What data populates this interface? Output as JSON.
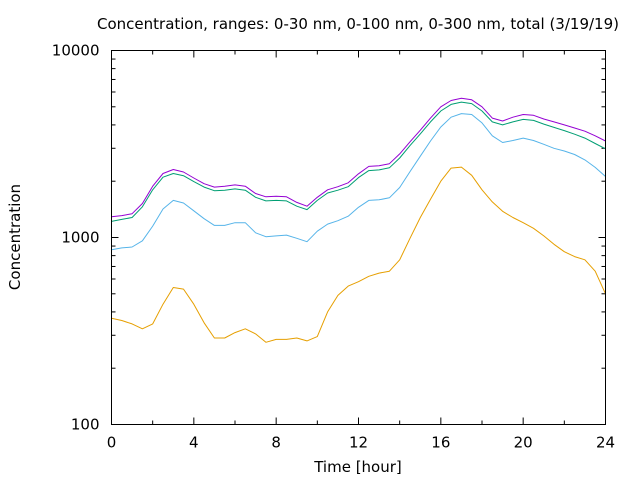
{
  "chart_data": {
    "type": "line",
    "title": "Concentration, ranges: 0-30 nm, 0-100 nm, 0-300 nm, total (3/19/19)",
    "xlabel": "Time [hour]",
    "ylabel": "Concentration",
    "xlim": [
      0,
      24
    ],
    "ylim": [
      100,
      10000
    ],
    "yscale": "log",
    "grid": false,
    "legend": "none",
    "xticks": [
      "0",
      "4",
      "8",
      "12",
      "16",
      "20",
      "24"
    ],
    "yticks": [
      "100",
      "1000",
      "10000"
    ],
    "x": [
      0,
      0.5,
      1,
      1.5,
      2,
      2.5,
      3,
      3.5,
      4,
      4.5,
      5,
      5.5,
      6,
      6.5,
      7,
      7.5,
      8,
      8.5,
      9,
      9.5,
      10,
      10.5,
      11,
      11.5,
      12,
      12.5,
      13,
      13.5,
      14,
      14.5,
      15,
      15.5,
      16,
      16.5,
      17,
      17.5,
      18,
      18.5,
      19,
      19.5,
      20,
      20.5,
      21,
      21.5,
      22,
      22.5,
      23,
      23.5,
      24
    ],
    "series": [
      {
        "color": "#9400d3",
        "values": [
          1290,
          1310,
          1340,
          1520,
          1880,
          2200,
          2310,
          2240,
          2080,
          1940,
          1860,
          1880,
          1910,
          1880,
          1720,
          1650,
          1660,
          1650,
          1540,
          1470,
          1640,
          1800,
          1870,
          1960,
          2190,
          2400,
          2420,
          2480,
          2800,
          3250,
          3750,
          4350,
          5000,
          5400,
          5550,
          5450,
          5000,
          4350,
          4200,
          4400,
          4550,
          4500,
          4300,
          4150,
          4000,
          3850,
          3700,
          3500,
          3280
        ]
      },
      {
        "color": "#009e73",
        "values": [
          1220,
          1250,
          1280,
          1460,
          1800,
          2100,
          2200,
          2140,
          1990,
          1860,
          1780,
          1790,
          1820,
          1790,
          1640,
          1570,
          1580,
          1570,
          1470,
          1410,
          1580,
          1730,
          1790,
          1870,
          2090,
          2280,
          2300,
          2360,
          2660,
          3100,
          3580,
          4150,
          4750,
          5150,
          5300,
          5200,
          4750,
          4150,
          4000,
          4150,
          4280,
          4230,
          4040,
          3880,
          3730,
          3570,
          3400,
          3180,
          2980
        ]
      },
      {
        "color": "#56b4e9",
        "values": [
          860,
          880,
          890,
          960,
          1150,
          1420,
          1580,
          1530,
          1390,
          1260,
          1160,
          1160,
          1200,
          1200,
          1060,
          1010,
          1020,
          1030,
          990,
          950,
          1080,
          1180,
          1230,
          1300,
          1450,
          1580,
          1590,
          1630,
          1850,
          2250,
          2720,
          3280,
          3900,
          4400,
          4600,
          4550,
          4100,
          3500,
          3220,
          3300,
          3400,
          3300,
          3150,
          3000,
          2900,
          2780,
          2600,
          2370,
          2120
        ]
      },
      {
        "color": "#e69f00",
        "values": [
          370,
          360,
          345,
          325,
          345,
          440,
          540,
          530,
          440,
          350,
          290,
          290,
          310,
          325,
          305,
          275,
          285,
          285,
          290,
          280,
          295,
          400,
          490,
          550,
          580,
          620,
          645,
          660,
          760,
          990,
          1280,
          1600,
          2000,
          2350,
          2380,
          2150,
          1800,
          1550,
          1380,
          1280,
          1200,
          1120,
          1020,
          920,
          840,
          790,
          760,
          660,
          500
        ]
      }
    ]
  }
}
